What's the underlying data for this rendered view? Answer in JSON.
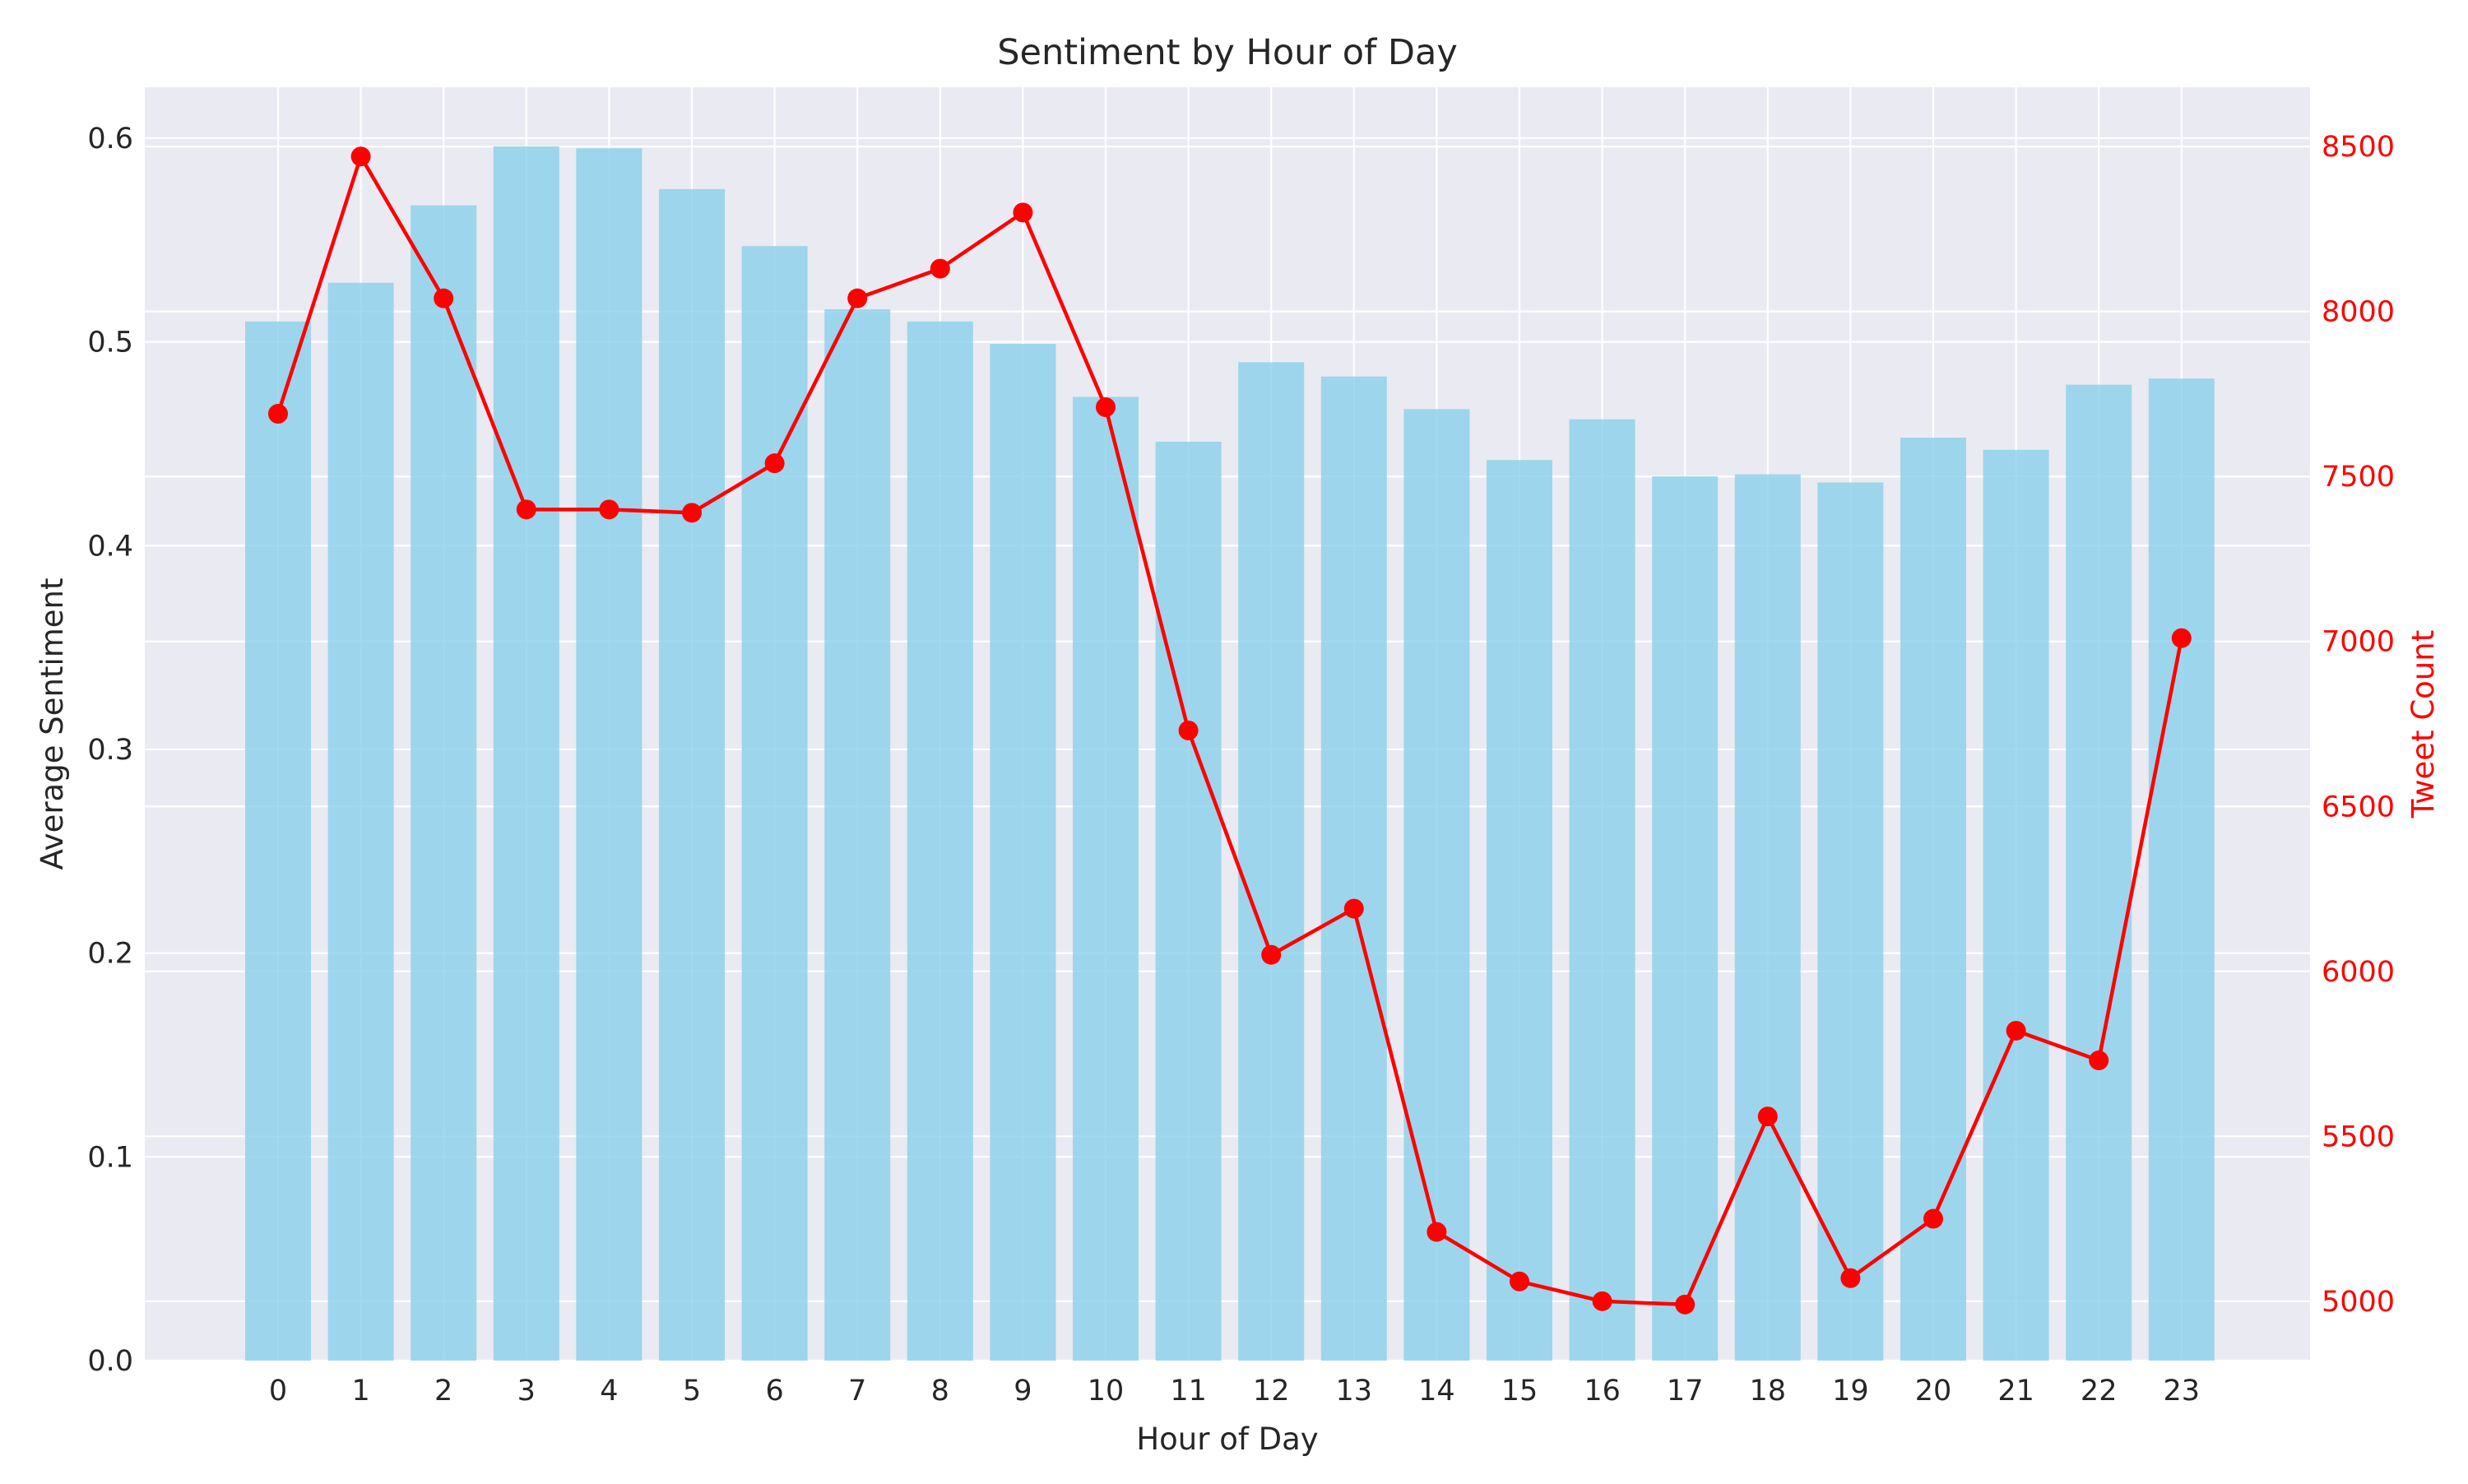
{
  "chart_data": {
    "type": "bar",
    "title": "Sentiment by Hour of Day",
    "xlabel": "Hour of Day",
    "ylabel": "Average Sentiment",
    "y2label": "Tweet Count",
    "categories": [
      "0",
      "1",
      "2",
      "3",
      "4",
      "5",
      "6",
      "7",
      "8",
      "9",
      "10",
      "11",
      "12",
      "13",
      "14",
      "15",
      "16",
      "17",
      "18",
      "19",
      "20",
      "21",
      "22",
      "23"
    ],
    "series": [
      {
        "type": "bar",
        "axis": "left",
        "color": "#87CEEB",
        "values": [
          0.51,
          0.529,
          0.567,
          0.596,
          0.595,
          0.575,
          0.547,
          0.516,
          0.51,
          0.499,
          0.473,
          0.451,
          0.49,
          0.483,
          0.467,
          0.442,
          0.462,
          0.434,
          0.435,
          0.431,
          0.453,
          0.447,
          0.479,
          0.482
        ]
      },
      {
        "type": "line",
        "axis": "right",
        "color": "#ff0000",
        "values": [
          7690,
          8470,
          8040,
          7400,
          7400,
          7390,
          7540,
          8040,
          8130,
          8300,
          7710,
          6730,
          6050,
          6190,
          5210,
          5060,
          5000,
          4990,
          5560,
          5070,
          5250,
          5820,
          5730,
          7010
        ]
      }
    ],
    "ylim": [
      0,
      0.625
    ],
    "y_ticks": [
      "0.0",
      "0.1",
      "0.2",
      "0.3",
      "0.4",
      "0.5",
      "0.6"
    ],
    "y2lim": [
      4820,
      8680
    ],
    "y2_ticks": [
      "5000",
      "5500",
      "6000",
      "6500",
      "7000",
      "7500",
      "8000",
      "8500"
    ],
    "grid": true,
    "colors": {
      "background": "#eaeaf2",
      "grid": "#ffffff",
      "right_axis": "#ff0000",
      "text": "#262626"
    }
  }
}
